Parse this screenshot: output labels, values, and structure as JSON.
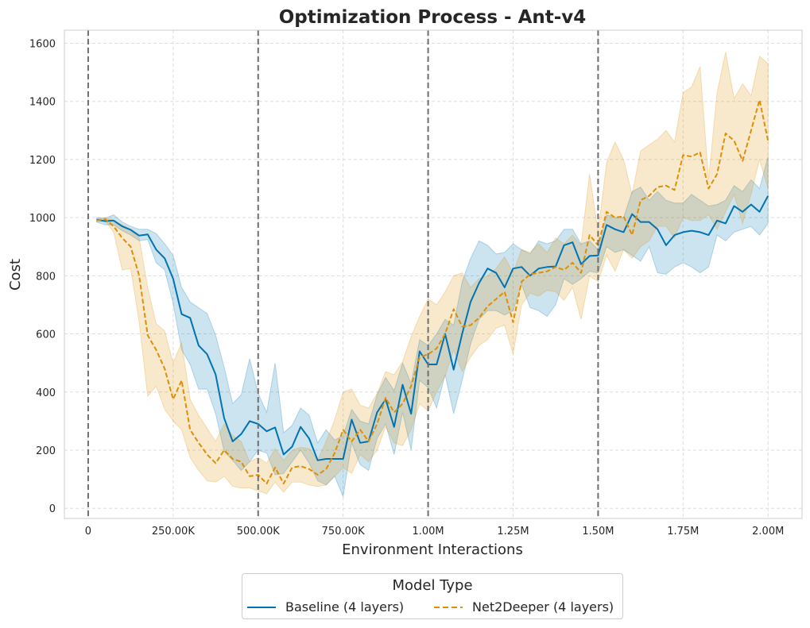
{
  "chart_data": {
    "type": "line",
    "title": "Optimization Process - Ant-v4",
    "xlabel": "Environment Interactions",
    "ylabel": "Cost",
    "xlim": [
      -70000,
      2100000
    ],
    "ylim": [
      -35,
      1645
    ],
    "xticks": [
      0,
      250000,
      500000,
      750000,
      1000000,
      1250000,
      1500000,
      1750000,
      2000000
    ],
    "xtick_labels": [
      "0",
      "250.00K",
      "500.00K",
      "750.00K",
      "1.00M",
      "1.25M",
      "1.50M",
      "1.75M",
      "2.00M"
    ],
    "yticks": [
      0,
      200,
      400,
      600,
      800,
      1000,
      1200,
      1400,
      1600
    ],
    "ytick_labels": [
      "0",
      "200",
      "400",
      "600",
      "800",
      "1000",
      "1200",
      "1400",
      "1600"
    ],
    "grid": true,
    "vlines": [
      0,
      500000,
      1000000,
      1500000
    ],
    "legend_title": "Model Type",
    "legend_position": "bottom-center",
    "x": [
      25000,
      50000,
      75000,
      100000,
      125000,
      150000,
      175000,
      200000,
      225000,
      250000,
      275000,
      300000,
      325000,
      350000,
      375000,
      400000,
      425000,
      450000,
      475000,
      500000,
      525000,
      550000,
      575000,
      600000,
      625000,
      650000,
      675000,
      700000,
      725000,
      750000,
      775000,
      800000,
      825000,
      850000,
      875000,
      900000,
      925000,
      950000,
      975000,
      1000000,
      1025000,
      1050000,
      1075000,
      1100000,
      1125000,
      1150000,
      1175000,
      1200000,
      1225000,
      1250000,
      1275000,
      1300000,
      1325000,
      1350000,
      1375000,
      1400000,
      1425000,
      1450000,
      1475000,
      1500000,
      1525000,
      1550000,
      1575000,
      1600000,
      1625000,
      1650000,
      1675000,
      1700000,
      1725000,
      1750000,
      1775000,
      1800000,
      1825000,
      1850000,
      1875000,
      1900000,
      1925000,
      1950000,
      1975000,
      2000000
    ],
    "series": [
      {
        "name": "Baseline (4 layers)",
        "color": "#0173b2",
        "linestyle": "solid",
        "values": [
          993,
          988,
          990,
          970,
          958,
          938,
          942,
          890,
          860,
          790,
          668,
          655,
          560,
          530,
          460,
          310,
          230,
          255,
          300,
          290,
          265,
          278,
          185,
          212,
          280,
          240,
          165,
          170,
          170,
          170,
          305,
          225,
          230,
          330,
          375,
          280,
          425,
          325,
          540,
          495,
          495,
          600,
          477,
          600,
          710,
          775,
          825,
          810,
          760,
          825,
          830,
          800,
          825,
          830,
          832,
          905,
          915,
          840,
          868,
          870,
          975,
          960,
          950,
          1012,
          985,
          985,
          960,
          905,
          940,
          950,
          955,
          950,
          940,
          990,
          980,
          1040,
          1020,
          1045,
          1020,
          1075
        ],
        "upper": [
          1000,
          998,
          1010,
          985,
          970,
          960,
          960,
          945,
          910,
          870,
          760,
          710,
          690,
          670,
          595,
          485,
          360,
          390,
          515,
          395,
          330,
          500,
          260,
          285,
          345,
          320,
          225,
          270,
          235,
          250,
          340,
          300,
          290,
          390,
          450,
          405,
          500,
          430,
          580,
          560,
          600,
          650,
          630,
          780,
          860,
          920,
          905,
          875,
          880,
          910,
          890,
          875,
          920,
          910,
          920,
          960,
          960,
          910,
          920,
          890,
          1010,
          1000,
          1000,
          1090,
          1105,
          1060,
          1090,
          1060,
          1050,
          1050,
          1080,
          1060,
          1040,
          1045,
          1060,
          1110,
          1090,
          1130,
          1100,
          1210
        ],
        "lower": [
          985,
          975,
          975,
          955,
          940,
          920,
          925,
          845,
          820,
          705,
          545,
          495,
          410,
          410,
          325,
          195,
          165,
          130,
          160,
          200,
          190,
          115,
          120,
          160,
          200,
          155,
          95,
          80,
          110,
          40,
          225,
          150,
          130,
          240,
          290,
          185,
          330,
          200,
          440,
          415,
          345,
          460,
          325,
          440,
          565,
          650,
          680,
          680,
          665,
          680,
          770,
          690,
          680,
          660,
          700,
          790,
          770,
          790,
          815,
          810,
          900,
          880,
          890,
          870,
          850,
          900,
          810,
          805,
          830,
          845,
          830,
          810,
          830,
          940,
          920,
          950,
          960,
          970,
          940,
          980
        ]
      },
      {
        "name": "Net2Deeper (4 layers)",
        "color": "#de8f05",
        "linestyle": "dashed",
        "values": [
          990,
          995,
          970,
          930,
          900,
          800,
          595,
          545,
          480,
          375,
          440,
          270,
          225,
          185,
          155,
          200,
          170,
          160,
          110,
          115,
          85,
          140,
          85,
          140,
          145,
          135,
          115,
          135,
          190,
          270,
          230,
          270,
          230,
          290,
          380,
          330,
          360,
          420,
          520,
          530,
          550,
          600,
          685,
          625,
          630,
          655,
          695,
          720,
          745,
          640,
          780,
          805,
          810,
          815,
          830,
          820,
          845,
          810,
          940,
          905,
          1020,
          1000,
          1005,
          940,
          1060,
          1075,
          1105,
          1110,
          1095,
          1215,
          1210,
          1225,
          1100,
          1150,
          1290,
          1265,
          1195,
          1300,
          1405,
          1265
        ],
        "upper": [
          995,
          1000,
          990,
          975,
          960,
          930,
          760,
          635,
          610,
          500,
          570,
          375,
          320,
          275,
          230,
          290,
          250,
          230,
          160,
          175,
          155,
          205,
          165,
          200,
          210,
          205,
          165,
          230,
          305,
          400,
          410,
          355,
          345,
          395,
          470,
          460,
          505,
          590,
          660,
          720,
          700,
          745,
          800,
          810,
          760,
          790,
          800,
          825,
          865,
          810,
          890,
          880,
          910,
          880,
          930,
          910,
          940,
          905,
          1150,
          950,
          1190,
          1260,
          1200,
          1080,
          1230,
          1250,
          1270,
          1300,
          1260,
          1430,
          1450,
          1520,
          1130,
          1430,
          1570,
          1410,
          1460,
          1420,
          1555,
          1530
        ],
        "lower": [
          985,
          990,
          950,
          820,
          825,
          640,
          385,
          420,
          340,
          300,
          270,
          175,
          130,
          95,
          90,
          110,
          75,
          70,
          70,
          60,
          50,
          90,
          55,
          90,
          90,
          80,
          75,
          80,
          110,
          140,
          120,
          185,
          160,
          200,
          280,
          225,
          215,
          270,
          360,
          335,
          400,
          455,
          545,
          470,
          520,
          560,
          580,
          620,
          630,
          530,
          700,
          740,
          730,
          750,
          745,
          715,
          760,
          650,
          800,
          780,
          870,
          815,
          890,
          860,
          900,
          920,
          970,
          970,
          930,
          1000,
          990,
          990,
          1010,
          960,
          1020,
          1080,
          980,
          1080,
          1200,
          1100
        ]
      }
    ]
  }
}
